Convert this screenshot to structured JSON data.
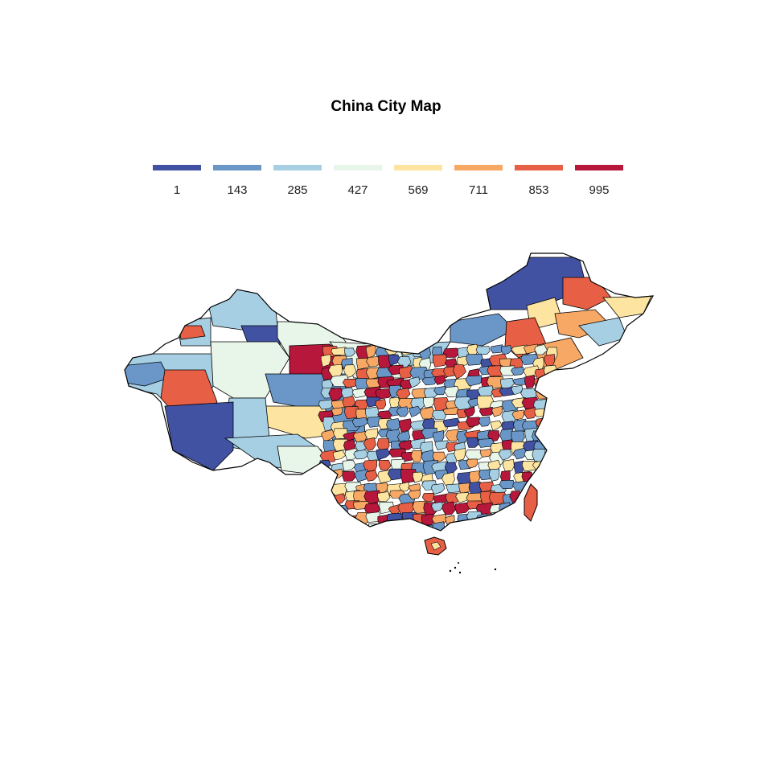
{
  "title": "China City Map",
  "legend": {
    "items": [
      {
        "label": "1",
        "color": "#4252a3"
      },
      {
        "label": "143",
        "color": "#6a97c8"
      },
      {
        "label": "285",
        "color": "#a6cfe3"
      },
      {
        "label": "427",
        "color": "#e8f5e9"
      },
      {
        "label": "569",
        "color": "#fde4a0"
      },
      {
        "label": "711",
        "color": "#f7a865"
      },
      {
        "label": "853",
        "color": "#e75f45"
      },
      {
        "label": "995",
        "color": "#b6173a"
      }
    ]
  },
  "palette": {
    "border": "#000000",
    "background": "#ffffff"
  }
}
